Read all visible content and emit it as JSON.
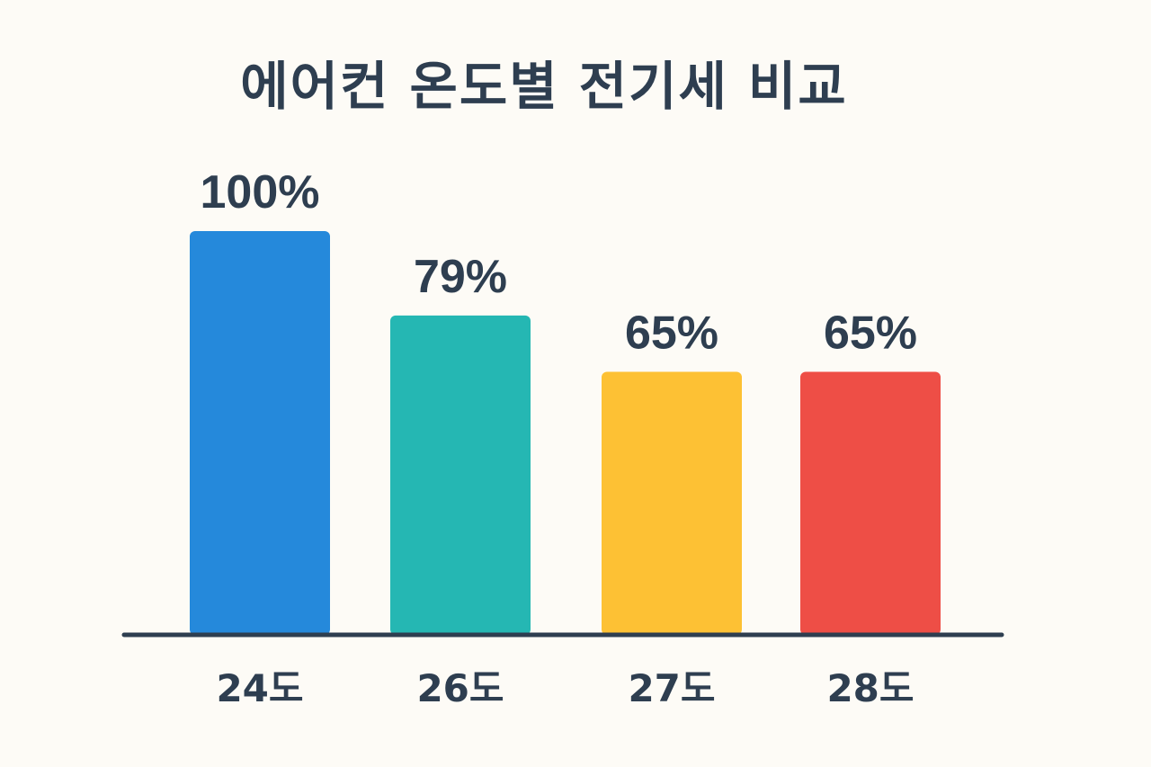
{
  "chart_data": {
    "type": "bar",
    "title": "에어컨 온도별 전기세 비교",
    "xlabel": "",
    "ylabel": "",
    "categories": [
      "24도",
      "26도",
      "27도",
      "28도"
    ],
    "values": [
      100,
      79,
      65,
      65
    ],
    "value_labels": [
      "100%",
      "79%",
      "65%",
      "65%"
    ],
    "bar_colors": [
      "#2589DB",
      "#25B7B3",
      "#FDC134",
      "#EE4E46"
    ],
    "ylim": [
      0,
      100
    ],
    "grid": false,
    "legend": "none"
  },
  "colors": {
    "background": "#FDFBF6",
    "text": "#2E3E50",
    "axis": "#2E3E50"
  }
}
